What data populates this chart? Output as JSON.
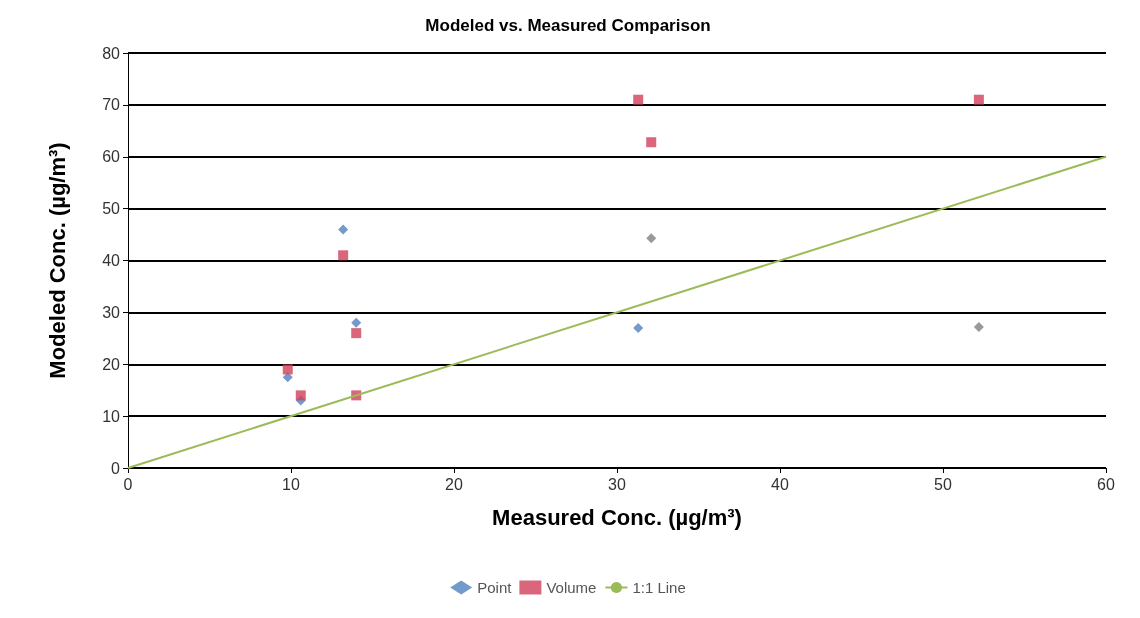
{
  "chart_data": {
    "type": "scatter",
    "title": "Modeled vs. Measured Comparison",
    "xlabel": "Measured Conc. (µg/m³)",
    "ylabel": "Modeled Conc. (µg/m³)",
    "xlim": [
      0,
      60
    ],
    "xticks": [
      0,
      10,
      20,
      30,
      40,
      50,
      60
    ],
    "ylim": [
      0,
      80
    ],
    "yticks": [
      0,
      10,
      20,
      30,
      40,
      50,
      60,
      70,
      80
    ],
    "grid": "y",
    "legend": "bottom",
    "series": [
      {
        "name": "Point",
        "marker": "diamond",
        "color": "#4f81bd",
        "colors": [
          "#4f81bd",
          "#4f81bd",
          "#4f81bd",
          "#4f81bd",
          "#4f81bd",
          "#7f7f7f",
          "#7f7f7f"
        ],
        "x": [
          9.8,
          10.6,
          13.2,
          14,
          31.3,
          32.1,
          52.2
        ],
        "values": [
          17.5,
          13,
          46,
          28,
          27,
          44.3,
          27.2
        ]
      },
      {
        "name": "Volume",
        "marker": "square",
        "color": "#d0405a",
        "x": [
          9.8,
          10.6,
          13.2,
          14,
          14,
          31.3,
          32.1,
          52.2
        ],
        "values": [
          19,
          14,
          41,
          26,
          14,
          71,
          62.8,
          71
        ]
      },
      {
        "name": "1:1 Line",
        "type": "line",
        "marker": "none",
        "color": "#9bbb59",
        "x": [
          0,
          60
        ],
        "values": [
          0,
          60
        ]
      }
    ]
  }
}
